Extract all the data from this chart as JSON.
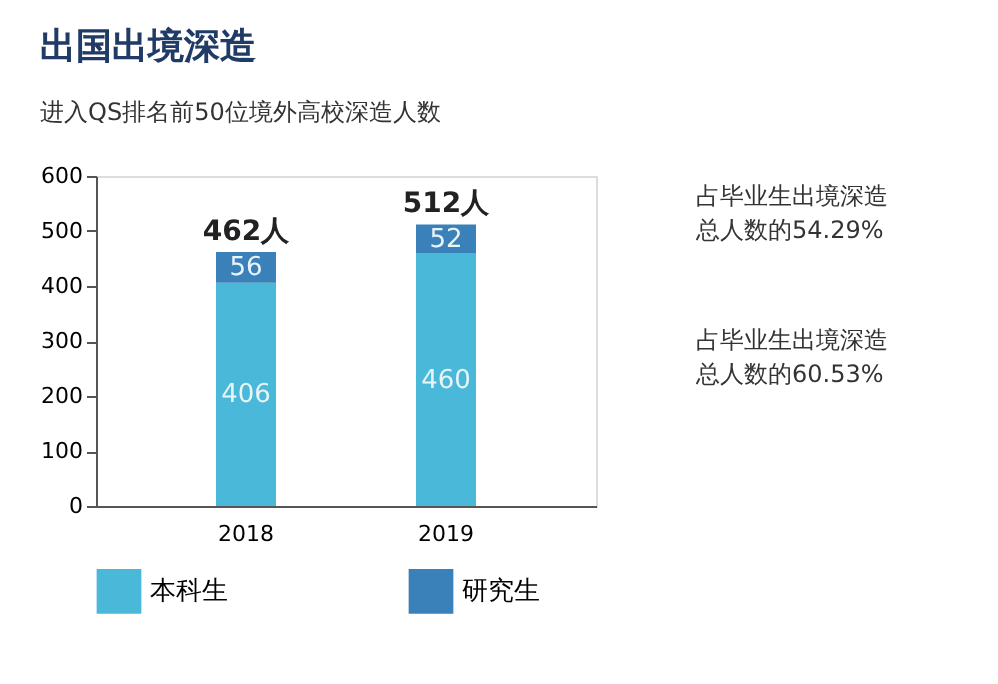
{
  "chart_data": {
    "type": "bar",
    "stacked": true,
    "title": "出国出境深造",
    "subtitle": "进入QS排名前50位境外高校深造人数",
    "categories": [
      "2018",
      "2019"
    ],
    "series": [
      {
        "name": "本科生",
        "color": "#4ab8d8",
        "values": [
          406,
          460
        ],
        "value_labels": [
          "406",
          "460"
        ]
      },
      {
        "name": "研究生",
        "color": "#3a80b9",
        "values": [
          56,
          52
        ],
        "value_labels": [
          "56",
          "52"
        ]
      }
    ],
    "totals": [
      "462人",
      "512人"
    ],
    "annotations": [
      "占毕业生出境深造总人数的54.29%",
      "占毕业生出境深造总人数的60.53%"
    ],
    "ylim": [
      0,
      600
    ],
    "yticks": [
      0,
      100,
      200,
      300,
      400,
      500,
      600
    ],
    "grid": false,
    "legend": "bottom"
  }
}
